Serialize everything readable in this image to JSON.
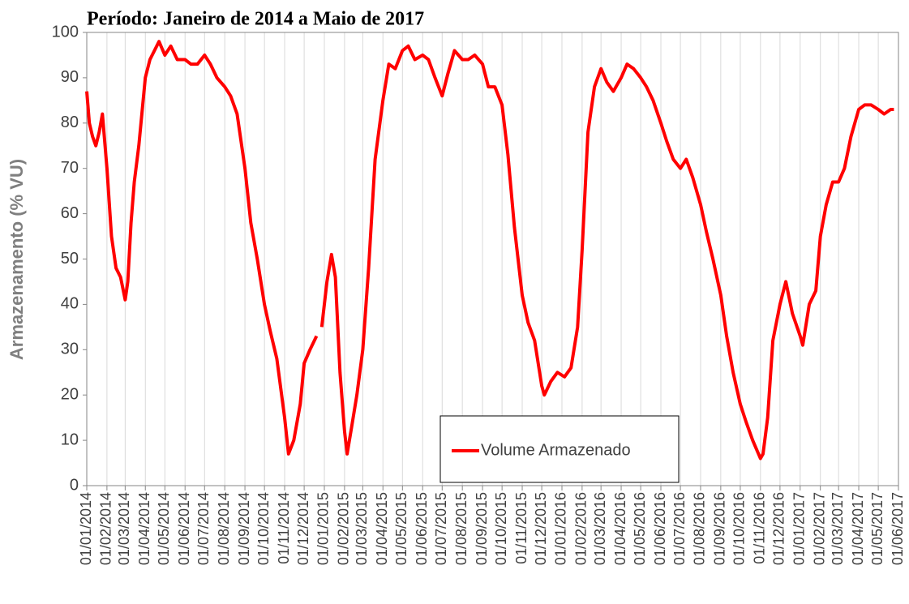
{
  "chart_data": {
    "type": "line",
    "title": "Período: Janeiro de 2014 a Maio de 2017",
    "y_label": "Armazenamento (% VU)",
    "legend": "lower center",
    "grid": "x",
    "ylim": [
      0,
      100
    ],
    "yticks": [
      0,
      10,
      20,
      30,
      40,
      50,
      60,
      70,
      80,
      90,
      100
    ],
    "xlim": [
      "01/01/2014",
      "01/06/2017"
    ],
    "xticks": [
      "01/01/2014",
      "01/02/2014",
      "01/03/2014",
      "01/04/2014",
      "01/05/2014",
      "01/06/2014",
      "01/07/2014",
      "01/08/2014",
      "01/09/2014",
      "01/10/2014",
      "01/11/2014",
      "01/12/2014",
      "01/01/2015",
      "01/02/2015",
      "01/03/2015",
      "01/04/2015",
      "01/05/2015",
      "01/06/2015",
      "01/07/2015",
      "01/08/2015",
      "01/09/2015",
      "01/10/2015",
      "01/11/2015",
      "01/12/2015",
      "01/01/2016",
      "01/02/2016",
      "01/03/2016",
      "01/04/2016",
      "01/05/2016",
      "01/06/2016",
      "01/07/2016",
      "01/08/2016",
      "01/09/2016",
      "01/10/2016",
      "01/11/2016",
      "01/12/2016",
      "01/01/2017",
      "01/02/2017",
      "01/03/2017",
      "01/04/2017",
      "01/05/2017",
      "01/06/2017"
    ],
    "x": [
      "01/01/2014",
      "05/01/2014",
      "10/01/2014",
      "15/01/2014",
      "20/01/2014",
      "25/01/2014",
      "01/02/2014",
      "08/02/2014",
      "15/02/2014",
      "22/02/2014",
      "01/03/2014",
      "05/03/2014",
      "10/03/2014",
      "15/03/2014",
      "22/03/2014",
      "01/04/2014",
      "08/04/2014",
      "15/04/2014",
      "22/04/2014",
      "01/05/2014",
      "10/05/2014",
      "20/05/2014",
      "01/06/2014",
      "10/06/2014",
      "20/06/2014",
      "01/07/2014",
      "10/07/2014",
      "20/07/2014",
      "01/08/2014",
      "10/08/2014",
      "20/08/2014",
      "01/09/2014",
      "10/09/2014",
      "20/09/2014",
      "01/10/2014",
      "10/10/2014",
      "20/10/2014",
      "01/11/2014",
      "07/11/2014",
      "15/11/2014",
      "25/11/2014",
      "01/12/2014",
      "10/12/2014",
      "20/12/2014",
      "25/12/2014",
      "28/12/2014",
      "05/01/2015",
      "12/01/2015",
      "18/01/2015",
      "25/01/2015",
      "01/02/2015",
      "05/02/2015",
      "12/02/2015",
      "20/02/2015",
      "01/03/2015",
      "10/03/2015",
      "20/03/2015",
      "01/04/2015",
      "10/04/2015",
      "20/04/2015",
      "01/05/2015",
      "10/05/2015",
      "20/05/2015",
      "01/06/2015",
      "10/06/2015",
      "20/06/2015",
      "01/07/2015",
      "10/07/2015",
      "20/07/2015",
      "01/08/2015",
      "10/08/2015",
      "20/08/2015",
      "01/09/2015",
      "10/09/2015",
      "20/09/2015",
      "01/10/2015",
      "10/10/2015",
      "20/10/2015",
      "01/11/2015",
      "10/11/2015",
      "20/11/2015",
      "01/12/2015",
      "05/12/2015",
      "15/12/2015",
      "25/12/2015",
      "05/01/2016",
      "15/01/2016",
      "25/01/2016",
      "01/02/2016",
      "10/02/2016",
      "20/02/2016",
      "01/03/2016",
      "10/03/2016",
      "20/03/2016",
      "01/04/2016",
      "10/04/2016",
      "20/04/2016",
      "01/05/2016",
      "10/05/2016",
      "20/05/2016",
      "01/06/2016",
      "10/06/2016",
      "20/06/2016",
      "01/07/2016",
      "10/07/2016",
      "20/07/2016",
      "01/08/2016",
      "10/08/2016",
      "20/08/2016",
      "01/09/2016",
      "10/09/2016",
      "20/09/2016",
      "01/10/2016",
      "10/10/2016",
      "20/10/2016",
      "01/11/2016",
      "05/11/2016",
      "12/11/2016",
      "20/11/2016",
      "01/12/2016",
      "10/12/2016",
      "20/12/2016",
      "01/01/2017",
      "05/01/2017",
      "15/01/2017",
      "25/01/2017",
      "01/02/2017",
      "10/02/2017",
      "20/02/2017",
      "01/03/2017",
      "10/03/2017",
      "20/03/2017",
      "01/04/2017",
      "10/04/2017",
      "20/04/2017",
      "01/05/2017",
      "10/05/2017",
      "20/05/2017",
      "25/05/2017"
    ],
    "series": [
      {
        "name": "Volume Armazenado",
        "color": "#ff0000",
        "values": [
          87,
          80,
          77,
          75,
          78,
          82,
          70,
          55,
          48,
          46,
          41,
          45,
          58,
          67,
          75,
          90,
          94,
          96,
          98,
          95,
          97,
          94,
          94,
          93,
          93,
          95,
          93,
          90,
          88,
          86,
          82,
          70,
          58,
          50,
          40,
          34,
          28,
          15,
          7,
          10,
          18,
          27,
          30,
          33,
          null,
          35,
          45,
          51,
          46,
          25,
          12,
          7,
          13,
          20,
          30,
          48,
          72,
          85,
          93,
          92,
          96,
          97,
          94,
          95,
          94,
          90,
          86,
          91,
          96,
          94,
          94,
          95,
          93,
          88,
          88,
          84,
          73,
          57,
          42,
          36,
          32,
          22,
          20,
          23,
          25,
          24,
          26,
          35,
          52,
          78,
          88,
          92,
          89,
          87,
          90,
          93,
          92,
          90,
          88,
          85,
          80,
          76,
          72,
          70,
          72,
          68,
          62,
          56,
          50,
          42,
          33,
          25,
          18,
          14,
          10,
          6,
          7,
          15,
          32,
          40,
          45,
          38,
          33,
          31,
          40,
          43,
          55,
          62,
          67,
          67,
          70,
          77,
          83,
          84,
          84,
          83,
          82,
          83,
          83
        ]
      }
    ]
  }
}
